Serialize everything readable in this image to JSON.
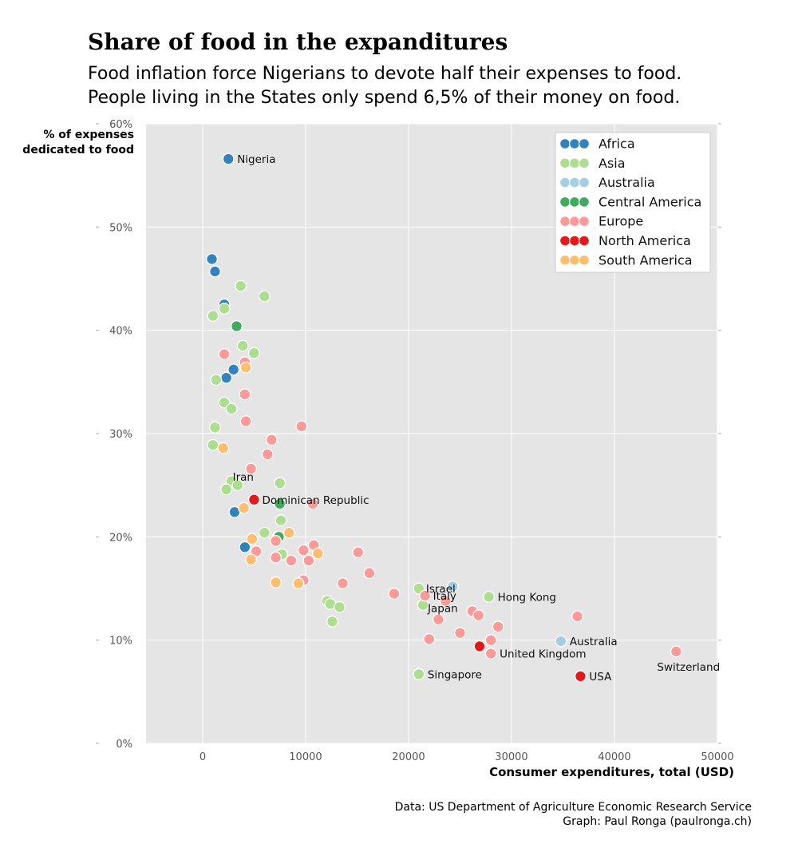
{
  "page": {
    "title": "Share of food in the expanditures",
    "subtitle_lines": [
      "Food inflation force Nigerians to devote half their expenses to food.",
      "People living in the States only spend 6,5% of their money on food."
    ],
    "credits": [
      "Data: US Department of Agriculture Economic Research Service",
      "Graph: Paul Ronga (paulronga.ch)"
    ]
  },
  "chart_data": {
    "type": "scatter",
    "xlabel": "Consumer expenditures, total (USD)",
    "ylabel_lines": [
      "% of expenses",
      "dedicated to food"
    ],
    "xlim": [
      -5500,
      50000
    ],
    "ylim": [
      0,
      60
    ],
    "xticks": [
      0,
      10000,
      20000,
      30000,
      40000,
      50000
    ],
    "xtick_labels": [
      "0",
      "10000",
      "20000",
      "30000",
      "40000",
      "50000"
    ],
    "yticks": [
      0,
      10,
      20,
      30,
      40,
      50,
      60
    ],
    "ytick_labels": [
      "0%",
      "10%",
      "20%",
      "30%",
      "40%",
      "50%",
      "60%"
    ],
    "grid": true,
    "legend_position": "top-right",
    "series": [
      {
        "name": "Africa",
        "color": "#3182bd",
        "points": [
          {
            "x": 2500,
            "y": 56.6,
            "label": "Nigeria"
          },
          {
            "x": 900,
            "y": 46.9
          },
          {
            "x": 1200,
            "y": 45.7
          },
          {
            "x": 2100,
            "y": 42.5
          },
          {
            "x": 3000,
            "y": 36.2
          },
          {
            "x": 2300,
            "y": 35.4
          },
          {
            "x": 3100,
            "y": 22.4
          },
          {
            "x": 4100,
            "y": 19.0
          }
        ]
      },
      {
        "name": "Asia",
        "color": "#addd8e",
        "points": [
          {
            "x": 3700,
            "y": 44.3
          },
          {
            "x": 6000,
            "y": 43.3
          },
          {
            "x": 2100,
            "y": 42.1
          },
          {
            "x": 1000,
            "y": 41.4
          },
          {
            "x": 3900,
            "y": 38.5
          },
          {
            "x": 5000,
            "y": 37.8
          },
          {
            "x": 1300,
            "y": 35.2
          },
          {
            "x": 2100,
            "y": 33.0
          },
          {
            "x": 2800,
            "y": 32.4
          },
          {
            "x": 1200,
            "y": 30.6
          },
          {
            "x": 1000,
            "y": 28.9
          },
          {
            "x": 2800,
            "y": 25.4
          },
          {
            "x": 3400,
            "y": 25.0
          },
          {
            "x": 2300,
            "y": 24.6,
            "label": "Iran"
          },
          {
            "x": 7500,
            "y": 25.2
          },
          {
            "x": 7600,
            "y": 21.6
          },
          {
            "x": 6000,
            "y": 20.4
          },
          {
            "x": 7300,
            "y": 20.0
          },
          {
            "x": 7700,
            "y": 18.3
          },
          {
            "x": 21000,
            "y": 15.0,
            "label": "Israel"
          },
          {
            "x": 21400,
            "y": 13.4,
            "label": "Japan"
          },
          {
            "x": 27800,
            "y": 14.2,
            "label": "Hong Kong"
          },
          {
            "x": 12100,
            "y": 13.8
          },
          {
            "x": 12400,
            "y": 13.5
          },
          {
            "x": 13300,
            "y": 13.2
          },
          {
            "x": 12600,
            "y": 11.8
          },
          {
            "x": 21000,
            "y": 6.7,
            "label": "Singapore"
          }
        ]
      },
      {
        "name": "Australia",
        "color": "#a6cee3",
        "points": [
          {
            "x": 24300,
            "y": 15.2
          },
          {
            "x": 34800,
            "y": 9.9,
            "label": "Australia"
          }
        ]
      },
      {
        "name": "Central America",
        "color": "#41ab5d",
        "points": [
          {
            "x": 3300,
            "y": 40.4
          },
          {
            "x": 7500,
            "y": 23.2
          },
          {
            "x": 7400,
            "y": 20.0
          }
        ]
      },
      {
        "name": "Europe",
        "color": "#fb9a99",
        "points": [
          {
            "x": 2100,
            "y": 37.7
          },
          {
            "x": 4100,
            "y": 36.9
          },
          {
            "x": 4100,
            "y": 33.8
          },
          {
            "x": 4200,
            "y": 31.2
          },
          {
            "x": 9600,
            "y": 30.7
          },
          {
            "x": 6700,
            "y": 29.4
          },
          {
            "x": 6300,
            "y": 28.0
          },
          {
            "x": 4700,
            "y": 26.6
          },
          {
            "x": 10700,
            "y": 23.2
          },
          {
            "x": 7100,
            "y": 19.6
          },
          {
            "x": 5200,
            "y": 18.6
          },
          {
            "x": 7100,
            "y": 18.0
          },
          {
            "x": 8600,
            "y": 17.7
          },
          {
            "x": 9800,
            "y": 18.7
          },
          {
            "x": 10800,
            "y": 19.2
          },
          {
            "x": 10300,
            "y": 17.7
          },
          {
            "x": 9800,
            "y": 15.8
          },
          {
            "x": 13600,
            "y": 15.5
          },
          {
            "x": 15100,
            "y": 18.5
          },
          {
            "x": 16200,
            "y": 16.5
          },
          {
            "x": 18600,
            "y": 14.5
          },
          {
            "x": 21600,
            "y": 14.3,
            "label": "Italy"
          },
          {
            "x": 23600,
            "y": 13.8
          },
          {
            "x": 22900,
            "y": 12.0
          },
          {
            "x": 26200,
            "y": 12.8
          },
          {
            "x": 26800,
            "y": 12.4
          },
          {
            "x": 22000,
            "y": 10.1
          },
          {
            "x": 25000,
            "y": 10.7
          },
          {
            "x": 28700,
            "y": 11.3
          },
          {
            "x": 28000,
            "y": 10.0
          },
          {
            "x": 28000,
            "y": 8.7,
            "label": "United Kingdom"
          },
          {
            "x": 36400,
            "y": 12.3
          },
          {
            "x": 46000,
            "y": 8.9,
            "label": "Switzerland"
          }
        ]
      },
      {
        "name": "North America",
        "color": "#e31a1c",
        "points": [
          {
            "x": 5000,
            "y": 23.6,
            "label": "Dominican Republic"
          },
          {
            "x": 26900,
            "y": 9.4
          },
          {
            "x": 36700,
            "y": 6.5,
            "label": "USA"
          }
        ]
      },
      {
        "name": "South America",
        "color": "#fdbf6f",
        "points": [
          {
            "x": 4200,
            "y": 36.4
          },
          {
            "x": 2000,
            "y": 28.6
          },
          {
            "x": 4000,
            "y": 22.8
          },
          {
            "x": 4800,
            "y": 19.8
          },
          {
            "x": 8400,
            "y": 20.4
          },
          {
            "x": 4700,
            "y": 17.8
          },
          {
            "x": 11200,
            "y": 18.4
          },
          {
            "x": 7100,
            "y": 15.6
          },
          {
            "x": 9300,
            "y": 15.5
          }
        ]
      }
    ]
  }
}
